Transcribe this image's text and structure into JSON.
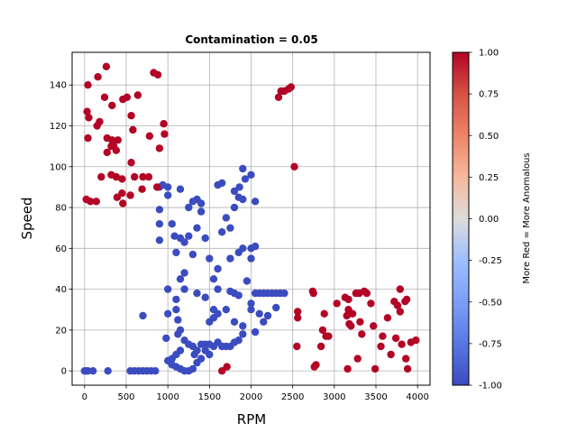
{
  "chart_data": {
    "type": "scatter",
    "title": "Contamination = 0.05",
    "xlabel": "RPM",
    "ylabel": "Speed",
    "xlim": [
      -150,
      4150
    ],
    "ylim": [
      -7,
      156
    ],
    "xticks": [
      0,
      500,
      1000,
      1500,
      2000,
      2500,
      3000,
      3500,
      4000
    ],
    "yticks": [
      0,
      20,
      40,
      60,
      80,
      100,
      120,
      140
    ],
    "grid": true,
    "colormap": "coolwarm",
    "colors": {
      "normal": "#3b4cc0",
      "anomalous": "#b40426"
    },
    "colorbar": {
      "label": "More Red = More Anomalous",
      "range": [
        -1.0,
        1.0
      ],
      "ticks": [
        "-1.00",
        "-0.75",
        "-0.50",
        "-0.25",
        "0.00",
        "0.25",
        "0.50",
        "0.75",
        "1.00"
      ]
    },
    "series": [
      {
        "class": "normal",
        "value": -1.0,
        "points": [
          [
            0,
            0
          ],
          [
            20,
            0
          ],
          [
            40,
            0
          ],
          [
            100,
            0
          ],
          [
            280,
            0
          ],
          [
            1600,
            91
          ],
          [
            1650,
            92
          ],
          [
            1900,
            99
          ],
          [
            1930,
            94
          ],
          [
            2000,
            96
          ],
          [
            1150,
            89
          ],
          [
            1800,
            88
          ],
          [
            1300,
            83
          ],
          [
            1350,
            84
          ],
          [
            1400,
            82
          ],
          [
            1900,
            84
          ],
          [
            1860,
            90
          ],
          [
            2050,
            83
          ],
          [
            940,
            91
          ],
          [
            900,
            90
          ],
          [
            900,
            79
          ],
          [
            900,
            72
          ],
          [
            900,
            64
          ],
          [
            1000,
            86
          ],
          [
            1000,
            90
          ],
          [
            1250,
            80
          ],
          [
            1050,
            72
          ],
          [
            1080,
            66
          ],
          [
            1150,
            65
          ],
          [
            1200,
            63
          ],
          [
            1100,
            58
          ],
          [
            1850,
            58
          ],
          [
            2000,
            60
          ],
          [
            2050,
            61
          ],
          [
            1900,
            60
          ],
          [
            2000,
            55
          ],
          [
            1750,
            39
          ],
          [
            1800,
            38
          ],
          [
            1850,
            37
          ],
          [
            2000,
            33
          ],
          [
            2050,
            38
          ],
          [
            2100,
            38
          ],
          [
            2150,
            38
          ],
          [
            2200,
            38
          ],
          [
            2250,
            38
          ],
          [
            2300,
            38
          ],
          [
            2350,
            38
          ],
          [
            2400,
            38
          ],
          [
            1800,
            24
          ],
          [
            1900,
            22
          ],
          [
            1900,
            18
          ],
          [
            2000,
            30
          ],
          [
            2100,
            28
          ],
          [
            2050,
            19
          ],
          [
            2150,
            24
          ],
          [
            2200,
            27
          ],
          [
            2300,
            31
          ],
          [
            1600,
            14
          ],
          [
            1550,
            12
          ],
          [
            1650,
            12
          ],
          [
            1700,
            12
          ],
          [
            1750,
            12
          ],
          [
            1800,
            14
          ],
          [
            1850,
            15
          ],
          [
            1400,
            13
          ],
          [
            1450,
            13
          ],
          [
            1500,
            13
          ],
          [
            1350,
            10
          ],
          [
            1300,
            12
          ],
          [
            1250,
            13
          ],
          [
            1200,
            15
          ],
          [
            1150,
            10
          ],
          [
            1100,
            8
          ],
          [
            1050,
            6
          ],
          [
            1000,
            5
          ],
          [
            1050,
            3
          ],
          [
            1100,
            2
          ],
          [
            1150,
            1
          ],
          [
            1200,
            0
          ],
          [
            1250,
            0
          ],
          [
            1300,
            1
          ],
          [
            1320,
            8
          ],
          [
            1350,
            4
          ],
          [
            1400,
            6
          ],
          [
            1450,
            10
          ],
          [
            1500,
            8
          ],
          [
            1120,
            18
          ],
          [
            1150,
            20
          ],
          [
            1120,
            25
          ],
          [
            700,
            27
          ],
          [
            980,
            16
          ],
          [
            1000,
            40
          ],
          [
            1200,
            40
          ],
          [
            1350,
            38
          ],
          [
            1450,
            36
          ],
          [
            1700,
            30
          ],
          [
            1600,
            28
          ],
          [
            1550,
            26
          ],
          [
            1500,
            24
          ],
          [
            1550,
            30
          ],
          [
            1600,
            40
          ],
          [
            1550,
            45
          ],
          [
            1600,
            50
          ],
          [
            1500,
            55
          ],
          [
            1750,
            70
          ],
          [
            1700,
            75
          ],
          [
            1800,
            80
          ],
          [
            1850,
            85
          ],
          [
            1400,
            78
          ],
          [
            1350,
            70
          ],
          [
            1450,
            65
          ],
          [
            1300,
            57
          ],
          [
            1200,
            48
          ],
          [
            1150,
            45
          ],
          [
            1100,
            35
          ],
          [
            1100,
            30
          ],
          [
            1000,
            28
          ],
          [
            1650,
            68
          ],
          [
            1950,
            44
          ],
          [
            1750,
            55
          ],
          [
            1250,
            66
          ],
          [
            550,
            0
          ],
          [
            600,
            0
          ],
          [
            650,
            0
          ],
          [
            700,
            0
          ],
          [
            750,
            0
          ],
          [
            800,
            0
          ],
          [
            850,
            0
          ]
        ]
      },
      {
        "class": "anomalous",
        "value": 1.0,
        "points": [
          [
            30,
            127
          ],
          [
            50,
            124
          ],
          [
            40,
            140
          ],
          [
            160,
            144
          ],
          [
            260,
            149
          ],
          [
            240,
            134
          ],
          [
            180,
            122
          ],
          [
            150,
            120
          ],
          [
            330,
            130
          ],
          [
            460,
            133
          ],
          [
            510,
            134
          ],
          [
            580,
            118
          ],
          [
            640,
            135
          ],
          [
            780,
            115
          ],
          [
            830,
            146
          ],
          [
            880,
            145
          ],
          [
            900,
            109
          ],
          [
            950,
            121
          ],
          [
            960,
            116
          ],
          [
            270,
            114
          ],
          [
            270,
            107
          ],
          [
            320,
            110
          ],
          [
            330,
            113
          ],
          [
            350,
            110
          ],
          [
            380,
            108
          ],
          [
            400,
            113
          ],
          [
            560,
            125
          ],
          [
            40,
            114
          ],
          [
            320,
            96
          ],
          [
            380,
            95
          ],
          [
            450,
            94
          ],
          [
            200,
            95
          ],
          [
            450,
            87
          ],
          [
            550,
            86
          ],
          [
            560,
            102
          ],
          [
            600,
            95
          ],
          [
            690,
            89
          ],
          [
            700,
            95
          ],
          [
            770,
            95
          ],
          [
            870,
            90
          ],
          [
            20,
            84
          ],
          [
            70,
            83
          ],
          [
            140,
            83
          ],
          [
            390,
            85
          ],
          [
            460,
            82
          ],
          [
            2330,
            134
          ],
          [
            2360,
            137
          ],
          [
            2400,
            137
          ],
          [
            2450,
            138
          ],
          [
            2480,
            139
          ],
          [
            2520,
            100
          ],
          [
            1650,
            0
          ],
          [
            1710,
            2
          ],
          [
            2550,
            12
          ],
          [
            2560,
            29
          ],
          [
            2560,
            26
          ],
          [
            2740,
            39
          ],
          [
            2750,
            38
          ],
          [
            2760,
            2
          ],
          [
            2780,
            3
          ],
          [
            2840,
            12
          ],
          [
            2860,
            20
          ],
          [
            2880,
            28
          ],
          [
            2900,
            17
          ],
          [
            2930,
            17
          ],
          [
            3030,
            33
          ],
          [
            3130,
            36
          ],
          [
            3150,
            27
          ],
          [
            3160,
            1
          ],
          [
            3170,
            35
          ],
          [
            3170,
            30
          ],
          [
            3180,
            23
          ],
          [
            3200,
            22
          ],
          [
            3220,
            28
          ],
          [
            3260,
            38
          ],
          [
            3280,
            6
          ],
          [
            3300,
            38
          ],
          [
            3310,
            24
          ],
          [
            3330,
            18
          ],
          [
            3360,
            39
          ],
          [
            3390,
            38
          ],
          [
            3440,
            33
          ],
          [
            3470,
            22
          ],
          [
            3490,
            1
          ],
          [
            3560,
            12
          ],
          [
            3580,
            17
          ],
          [
            3640,
            26
          ],
          [
            3680,
            8
          ],
          [
            3720,
            34
          ],
          [
            3740,
            16
          ],
          [
            3760,
            32
          ],
          [
            3790,
            40
          ],
          [
            3790,
            29
          ],
          [
            3810,
            13
          ],
          [
            3850,
            34
          ],
          [
            3860,
            6
          ],
          [
            3870,
            35
          ],
          [
            3880,
            1
          ],
          [
            3920,
            14
          ],
          [
            3980,
            15
          ]
        ]
      }
    ]
  }
}
